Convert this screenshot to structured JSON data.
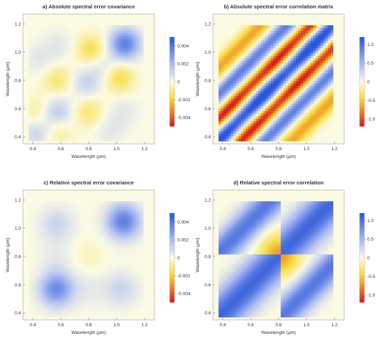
{
  "chart_data": [
    {
      "type": "heatmap",
      "title": "a) Absolute spectral error covariance",
      "xlabel": "Wavelength (μm)",
      "ylabel": "Wavelength (μm)",
      "xlim": [
        0.33,
        1.27
      ],
      "ylim": [
        0.35,
        1.27
      ],
      "xticks": [
        "0.4",
        "0.6",
        "0.8",
        "1.0",
        "1.2"
      ],
      "yticks": [
        "0.4",
        "0.6",
        "0.8",
        "1.0",
        "1.2"
      ],
      "colorbar": {
        "range": [
          -0.005,
          0.005
        ],
        "ticks": [
          "0.004",
          "0.002",
          "0",
          "-0.002",
          "-0.004"
        ]
      },
      "blobs": [
        {
          "x": 0.43,
          "y": 0.43,
          "v": 0.0012
        },
        {
          "x": 0.43,
          "y": 0.58,
          "v": -0.0008
        },
        {
          "x": 0.58,
          "y": 0.43,
          "v": -0.0008
        },
        {
          "x": 0.58,
          "y": 0.58,
          "v": 0.0015
        },
        {
          "x": 0.8,
          "y": 0.58,
          "v": -0.0012
        },
        {
          "x": 0.58,
          "y": 0.8,
          "v": -0.0012
        },
        {
          "x": 0.78,
          "y": 0.78,
          "v": 0.0012
        },
        {
          "x": 1.05,
          "y": 0.58,
          "v": 0.0006
        },
        {
          "x": 0.58,
          "y": 1.05,
          "v": 0.0006
        },
        {
          "x": 1.02,
          "y": 0.82,
          "v": -0.0016
        },
        {
          "x": 0.82,
          "y": 1.02,
          "v": -0.0016
        },
        {
          "x": 1.06,
          "y": 1.06,
          "v": 0.0038
        },
        {
          "x": 0.9,
          "y": 0.9,
          "v": 0.0008
        },
        {
          "x": 0.45,
          "y": 0.95,
          "v": 0.0006
        },
        {
          "x": 0.95,
          "y": 0.45,
          "v": 0.0006
        }
      ]
    },
    {
      "type": "heatmap",
      "title": "b) Absolute spectral error correlation matrix",
      "xlabel": "Wavelength (μm)",
      "ylabel": "Wavelength (μm)",
      "xlim": [
        0.33,
        1.27
      ],
      "ylim": [
        0.35,
        1.27
      ],
      "xticks": [
        "0.4",
        "0.6",
        "0.8",
        "1.0",
        "1.2"
      ],
      "yticks": [
        "0.4",
        "0.6",
        "0.8",
        "1.0",
        "1.2"
      ],
      "colorbar": {
        "range": [
          -1.2,
          1.2
        ],
        "ticks": [
          "1.0",
          "0.5",
          "0",
          "-0.5",
          "-1.0"
        ]
      }
    },
    {
      "type": "heatmap",
      "title": "c) Relative spectral error covariance",
      "xlabel": "Wavelength (μm)",
      "ylabel": "Wavelength (μm)",
      "xlim": [
        0.33,
        1.27
      ],
      "ylim": [
        0.35,
        1.27
      ],
      "xticks": [
        "0.4",
        "0.6",
        "0.8",
        "1.0",
        "1.2"
      ],
      "yticks": [
        "0.4",
        "0.6",
        "0.8",
        "1.0",
        "1.2"
      ],
      "colorbar": {
        "range": [
          -0.005,
          0.005
        ],
        "ticks": [
          "0.004",
          "0.002",
          "0",
          "-0.002",
          "-0.004"
        ]
      },
      "blobs": [
        {
          "x": 0.57,
          "y": 0.57,
          "v": 0.0034
        },
        {
          "x": 1.05,
          "y": 1.05,
          "v": 0.0038
        },
        {
          "x": 0.57,
          "y": 1.03,
          "v": 0.0012
        },
        {
          "x": 1.03,
          "y": 0.57,
          "v": 0.0012
        },
        {
          "x": 0.8,
          "y": 0.8,
          "v": -0.0004
        },
        {
          "x": 0.8,
          "y": 0.57,
          "v": 0.0005
        },
        {
          "x": 0.57,
          "y": 0.8,
          "v": 0.0005
        }
      ]
    },
    {
      "type": "heatmap",
      "title": "d) Relative spectral error correlation",
      "xlabel": "Wavelength (μm)",
      "ylabel": "Wavelength (μm)",
      "xlim": [
        0.33,
        1.27
      ],
      "ylim": [
        0.35,
        1.27
      ],
      "xticks": [
        "0.4",
        "0.6",
        "0.8",
        "1.0",
        "1.2"
      ],
      "yticks": [
        "0.4",
        "0.6",
        "0.8",
        "1.0",
        "1.2"
      ],
      "colorbar": {
        "range": [
          -1.2,
          1.2
        ],
        "ticks": [
          "1.0",
          "0.5",
          "0",
          "-0.5",
          "-1.0"
        ]
      }
    }
  ]
}
